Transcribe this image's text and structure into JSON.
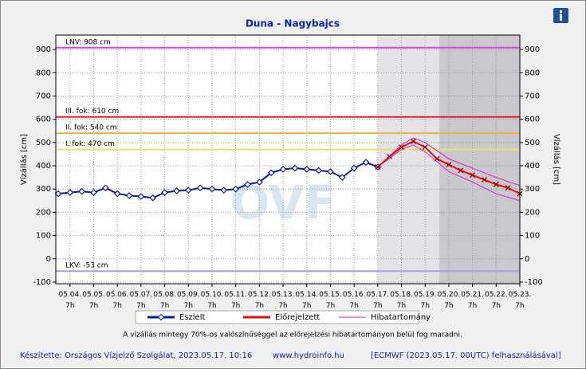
{
  "chart_data": {
    "type": "line",
    "title": "Duna - Nagybajcs",
    "y_label": "Vízállás [cm]",
    "y2_label": "Vízállás [cm]",
    "watermark": "OVF",
    "xlim": [
      -0.6,
      19
    ],
    "ylim": [
      -107,
      962
    ],
    "y2lim": [
      -107,
      962
    ],
    "grid": true,
    "xticks": [
      {
        "value": 0,
        "label": "05.04. 7h"
      },
      {
        "value": 1,
        "label": "05.05. 7h"
      },
      {
        "value": 2,
        "label": "05.06. 7h"
      },
      {
        "value": 3,
        "label": "05.07. 7h"
      },
      {
        "value": 4,
        "label": "05.08. 7h"
      },
      {
        "value": 5,
        "label": "05.09. 7h"
      },
      {
        "value": 6,
        "label": "05.10. 7h"
      },
      {
        "value": 7,
        "label": "05.11. 7h"
      },
      {
        "value": 8,
        "label": "05.12. 7h"
      },
      {
        "value": 9,
        "label": "05.13. 7h"
      },
      {
        "value": 10,
        "label": "05.14. 7h"
      },
      {
        "value": 11,
        "label": "05.15. 7h"
      },
      {
        "value": 12,
        "label": "05.16. 7h"
      },
      {
        "value": 13,
        "label": "05.17. 7h"
      },
      {
        "value": 14,
        "label": "05.18. 7h"
      },
      {
        "value": 15,
        "label": "05.19. 7h"
      },
      {
        "value": 16,
        "label": "05.20. 7h"
      },
      {
        "value": 17,
        "label": "05.21. 7h"
      },
      {
        "value": 18,
        "label": "05.22. 7h"
      },
      {
        "value": 19,
        "label": "05.23. 7h"
      }
    ],
    "yticks": [
      -100,
      0,
      100,
      200,
      300,
      400,
      500,
      600,
      700,
      800,
      900
    ],
    "y2ticks": [
      -100,
      0,
      100,
      200,
      300,
      400,
      500,
      600,
      700,
      800,
      900
    ],
    "shaded": [
      {
        "from": 13,
        "to": 15.6,
        "color": "#e4e4e8"
      },
      {
        "from": 15.6,
        "to": 19,
        "color": "#c9c9cd"
      }
    ],
    "levels": [
      {
        "label": "LNV: 908 cm",
        "value": 908,
        "color": "#e040e0"
      },
      {
        "label": "III. fok: 610 cm",
        "value": 610,
        "color": "#e02020"
      },
      {
        "label": "II. fok: 540 cm",
        "value": 540,
        "color": "#f0b040"
      },
      {
        "label": "I. fok: 470 cm",
        "value": 470,
        "color": "#f0e060"
      },
      {
        "label": "LKV: -53 cm",
        "value": -53,
        "color": "#a0a0f0"
      }
    ],
    "series": [
      {
        "name": "Észlelt",
        "color": "#0a1aa0",
        "marker": "diamond",
        "x": [
          -0.5,
          0,
          0.5,
          1,
          1.5,
          2,
          2.5,
          3,
          3.5,
          4,
          4.5,
          5,
          5.5,
          6,
          6.5,
          7,
          7.5,
          8,
          8.5,
          9,
          9.5,
          10,
          10.5,
          11,
          11.5,
          12,
          12.5,
          13
        ],
        "values": [
          280,
          285,
          290,
          285,
          305,
          280,
          272,
          268,
          262,
          285,
          292,
          295,
          305,
          300,
          295,
          300,
          320,
          330,
          370,
          385,
          390,
          385,
          380,
          375,
          350,
          390,
          415,
          395
        ]
      },
      {
        "name": "Előrejelzett",
        "color": "#e01010",
        "marker": "x",
        "x": [
          13,
          13.5,
          14,
          14.5,
          15,
          15.5,
          16,
          16.5,
          17,
          17.5,
          18,
          18.5,
          19
        ],
        "values": [
          395,
          440,
          480,
          505,
          480,
          430,
          405,
          380,
          360,
          340,
          320,
          305,
          280
        ]
      },
      {
        "name": "Hibatartomány",
        "color": "#d020d0",
        "marker": "none",
        "x": [
          13,
          14,
          14.5,
          15,
          16,
          17,
          18,
          19
        ],
        "values": [
          395,
          490,
          520,
          500,
          430,
          390,
          350,
          315
        ],
        "lower": [
          395,
          470,
          490,
          460,
          375,
          330,
          280,
          250
        ]
      }
    ],
    "note": "A vízállás mintegy 70%-os valószínűséggel az előrejelzési hibatartományon belül fog maradni.",
    "footer": [
      "Készítette: Országos Vízjelző Szolgálat, 2023.05.17. 10:16",
      "www.hydroinfo.hu",
      "[ECMWF (2023.05.17. 00UTC) felhasználásával]"
    ]
  }
}
